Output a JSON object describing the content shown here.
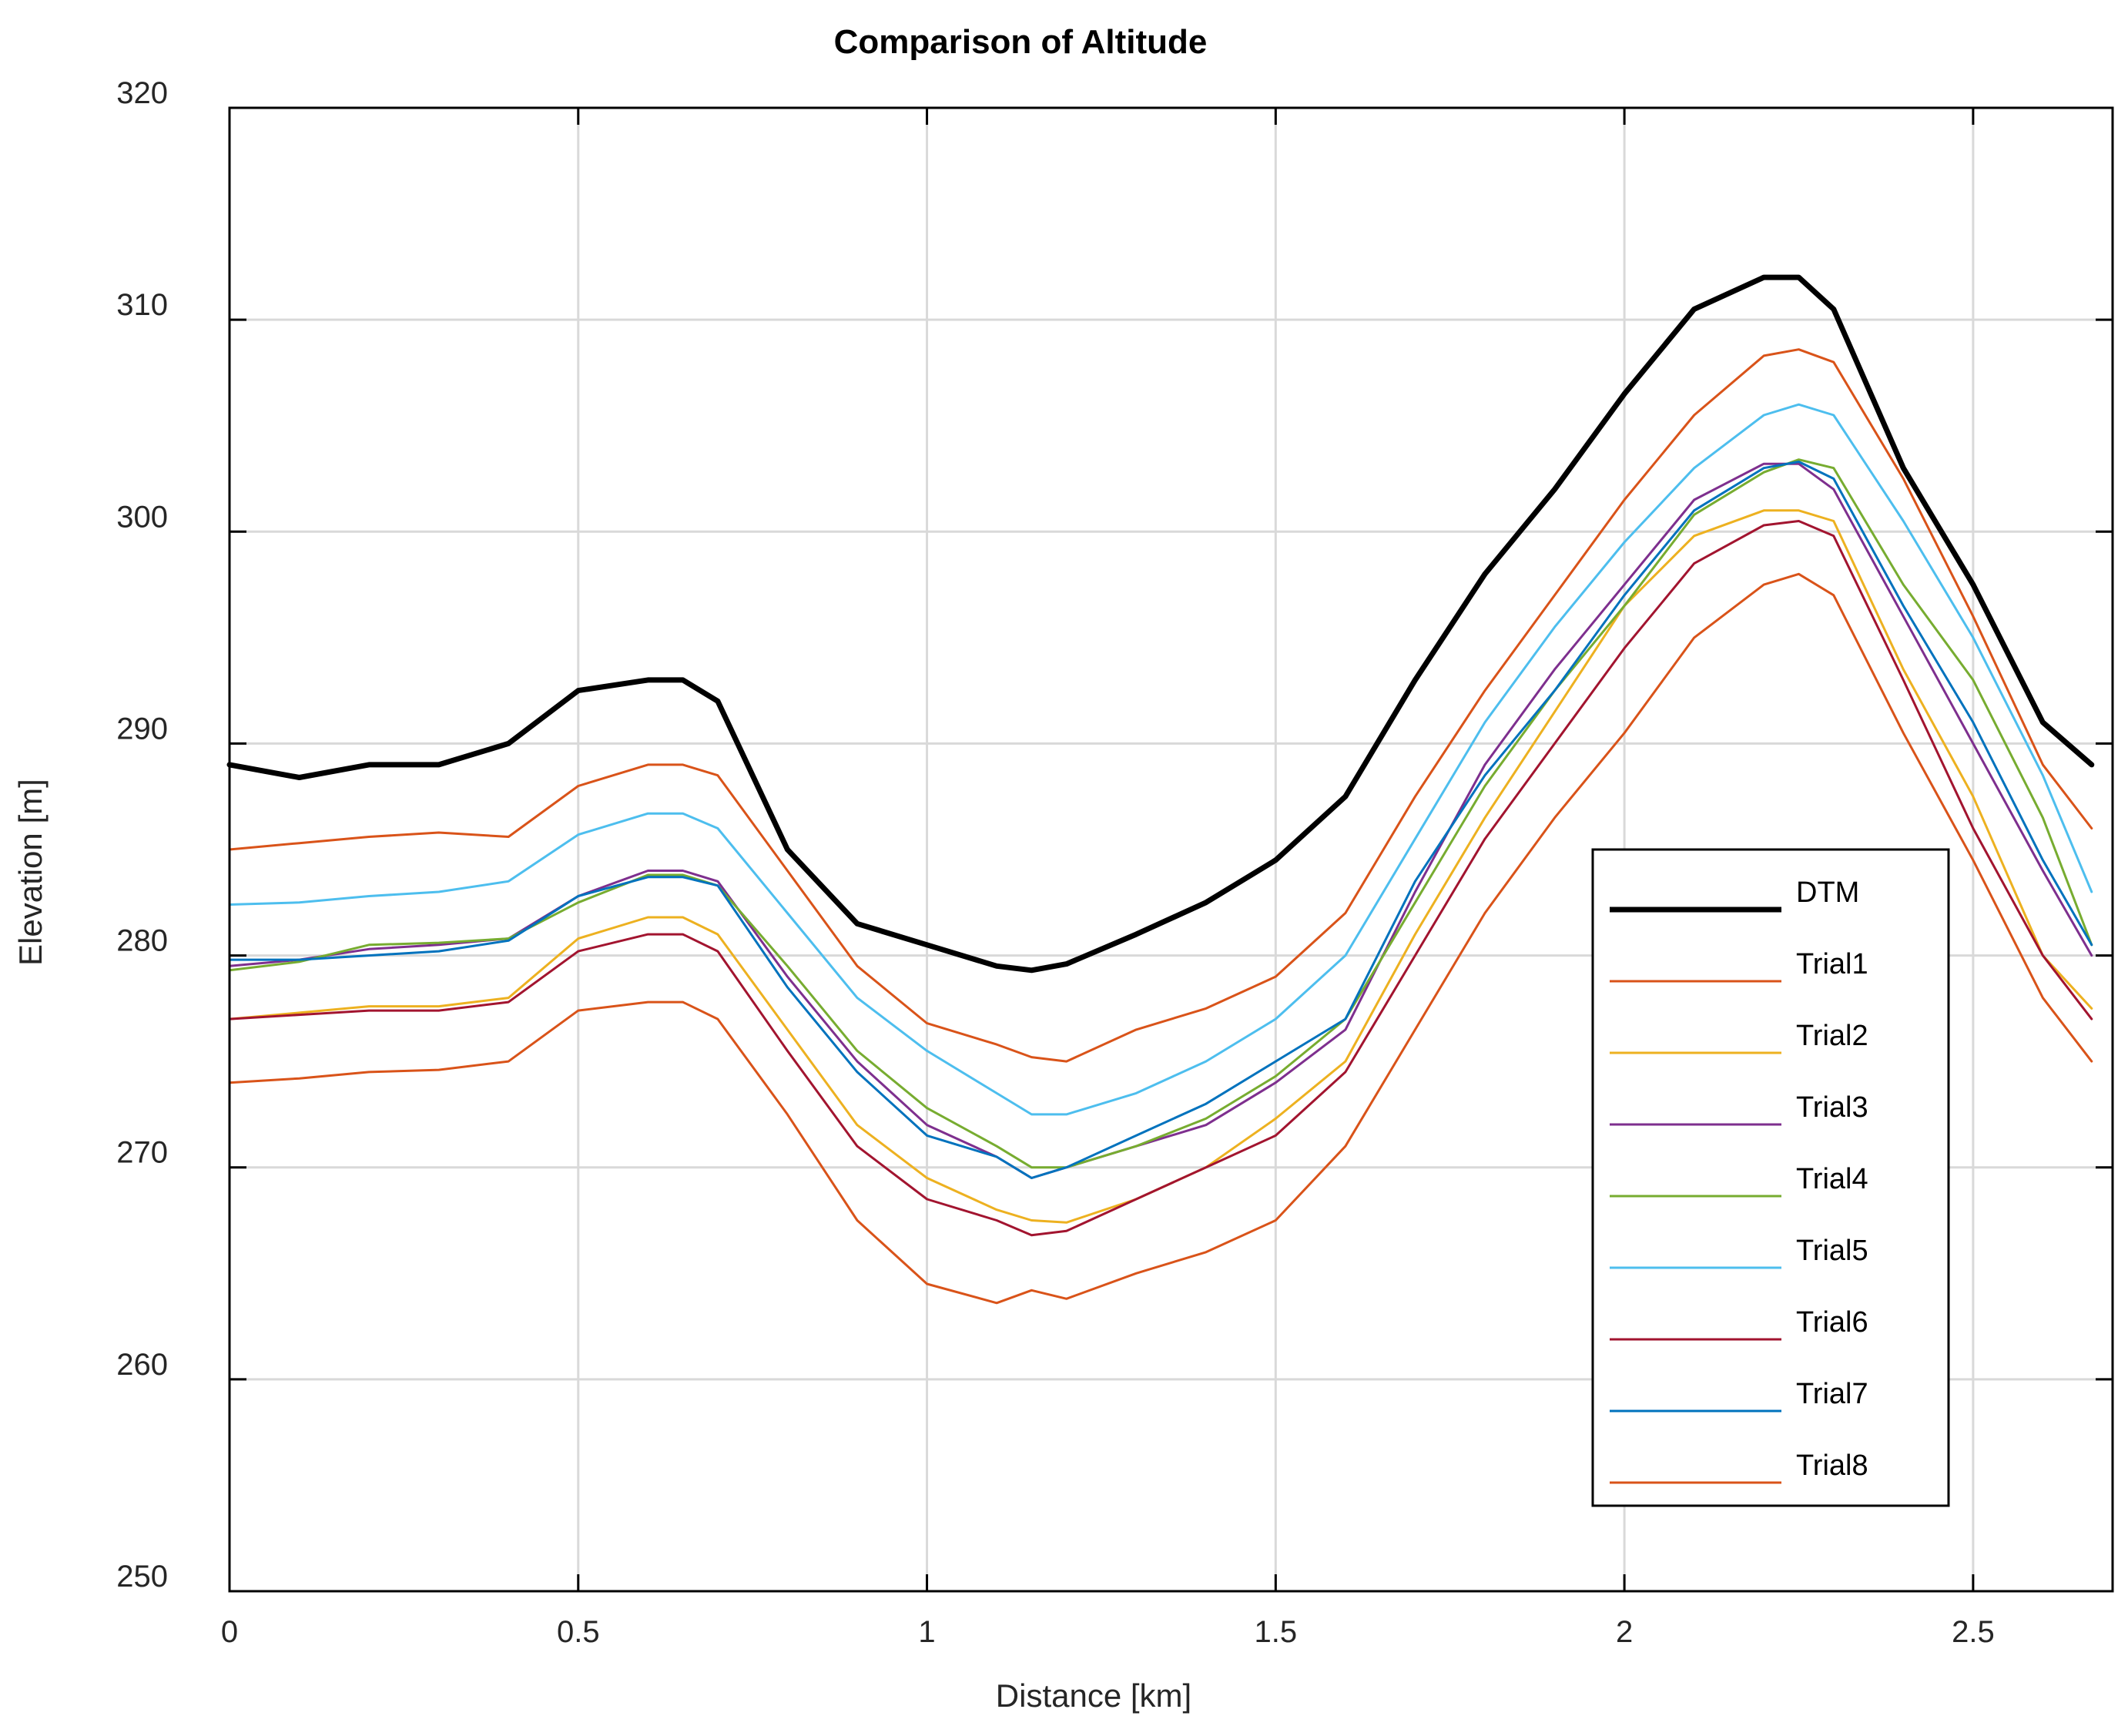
{
  "chart_data": {
    "type": "line",
    "title": "Comparison of Altitude",
    "xlabel": "Distance [km]",
    "ylabel": "Elevation [m]",
    "xlim": [
      0,
      2.7
    ],
    "ylim": [
      250,
      320
    ],
    "xticks": [
      0,
      0.5,
      1,
      1.5,
      2,
      2.5
    ],
    "xtick_labels": [
      "0",
      "0.5",
      "1",
      "1.5",
      "2",
      "2.5"
    ],
    "yticks": [
      250,
      260,
      270,
      280,
      290,
      300,
      310,
      320
    ],
    "ytick_labels": [
      "250",
      "260",
      "270",
      "280",
      "290",
      "300",
      "310",
      "320"
    ],
    "grid": true,
    "legend_position": "right-center",
    "x": [
      0,
      0.1,
      0.2,
      0.3,
      0.4,
      0.5,
      0.6,
      0.65,
      0.7,
      0.8,
      0.9,
      1.0,
      1.1,
      1.15,
      1.2,
      1.3,
      1.4,
      1.5,
      1.6,
      1.7,
      1.8,
      1.9,
      2.0,
      2.1,
      2.2,
      2.25,
      2.3,
      2.4,
      2.5,
      2.6,
      2.67
    ],
    "series": [
      {
        "name": "DTM",
        "color": "#000000",
        "width": 7,
        "values": [
          289,
          288.4,
          289,
          289,
          290,
          292.5,
          293,
          293,
          292,
          285,
          281.5,
          280.5,
          279.5,
          279.3,
          279.6,
          281,
          282.5,
          284.5,
          287.5,
          293,
          298,
          302,
          306.5,
          310.5,
          312,
          312,
          310.5,
          303,
          297.5,
          291,
          289
        ]
      },
      {
        "name": "Trial1",
        "color": "#D95319",
        "width": 3,
        "values": [
          285,
          285.3,
          285.6,
          285.8,
          285.6,
          288,
          289,
          289,
          288.5,
          284,
          279.5,
          276.8,
          275.8,
          275.2,
          275,
          276.5,
          277.5,
          279,
          282,
          287.5,
          292.5,
          297,
          301.5,
          305.5,
          308.3,
          308.6,
          308,
          302.5,
          296,
          289,
          286
        ]
      },
      {
        "name": "Trial2",
        "color": "#EDB120",
        "width": 3,
        "values": [
          277,
          277.3,
          277.6,
          277.6,
          278,
          280.8,
          281.8,
          281.8,
          281,
          276.5,
          272,
          269.5,
          268,
          267.5,
          267.4,
          268.5,
          270,
          272.3,
          275,
          281,
          286.5,
          291.5,
          296.5,
          299.8,
          301,
          301,
          300.5,
          293.5,
          287.5,
          280,
          277.5
        ]
      },
      {
        "name": "Trial3",
        "color": "#7E2F8E",
        "width": 3,
        "values": [
          279.5,
          279.8,
          280.3,
          280.5,
          280.8,
          282.8,
          284,
          284,
          283.5,
          279,
          275,
          272,
          270.5,
          269.5,
          270,
          271,
          272,
          274,
          276.5,
          283,
          289,
          293.5,
          297.5,
          301.5,
          303.2,
          303.2,
          302,
          296,
          290,
          284,
          280
        ]
      },
      {
        "name": "Trial4",
        "color": "#77AC30",
        "width": 3,
        "values": [
          279.3,
          279.7,
          280.5,
          280.6,
          280.8,
          282.5,
          283.8,
          283.8,
          283.3,
          279.5,
          275.5,
          272.8,
          271,
          270,
          270,
          271,
          272.3,
          274.3,
          277,
          282.5,
          288,
          292.5,
          296.5,
          300.8,
          302.8,
          303.4,
          303,
          297.5,
          293,
          286.5,
          280.5
        ]
      },
      {
        "name": "Trial5",
        "color": "#4DBEEE",
        "width": 3,
        "values": [
          282.4,
          282.5,
          282.8,
          283,
          283.5,
          285.7,
          286.7,
          286.7,
          286,
          282,
          278,
          275.5,
          273.5,
          272.5,
          272.5,
          273.5,
          275,
          277,
          280,
          285.5,
          291,
          295.5,
          299.5,
          303,
          305.5,
          306,
          305.5,
          300.5,
          295,
          288.5,
          283
        ]
      },
      {
        "name": "Trial6",
        "color": "#A2142F",
        "width": 3,
        "values": [
          277,
          277.2,
          277.4,
          277.4,
          277.8,
          280.2,
          281,
          281,
          280.2,
          275.5,
          271,
          268.5,
          267.5,
          266.8,
          267,
          268.5,
          270,
          271.5,
          274.5,
          280,
          285.5,
          290,
          294.5,
          298.5,
          300.3,
          300.5,
          299.8,
          293,
          286,
          280,
          277
        ]
      },
      {
        "name": "Trial7",
        "color": "#0072BD",
        "width": 3,
        "values": [
          279.8,
          279.8,
          280,
          280.2,
          280.7,
          282.8,
          283.7,
          283.7,
          283.3,
          278.5,
          274.5,
          271.5,
          270.5,
          269.5,
          270,
          271.5,
          273,
          275,
          277,
          283.5,
          288.5,
          292.5,
          297,
          301,
          303,
          303.3,
          302.5,
          296.5,
          291,
          284.5,
          280.5
        ]
      },
      {
        "name": "Trial8",
        "color": "#D95319",
        "width": 3,
        "values": [
          274,
          274.2,
          274.5,
          274.6,
          275,
          277.4,
          277.8,
          277.8,
          277,
          272.5,
          267.5,
          264.5,
          263.6,
          264.2,
          263.8,
          265,
          266,
          267.5,
          271,
          276.5,
          282,
          286.5,
          290.5,
          295,
          297.5,
          298,
          297,
          290.5,
          284.5,
          278,
          275
        ]
      }
    ]
  }
}
